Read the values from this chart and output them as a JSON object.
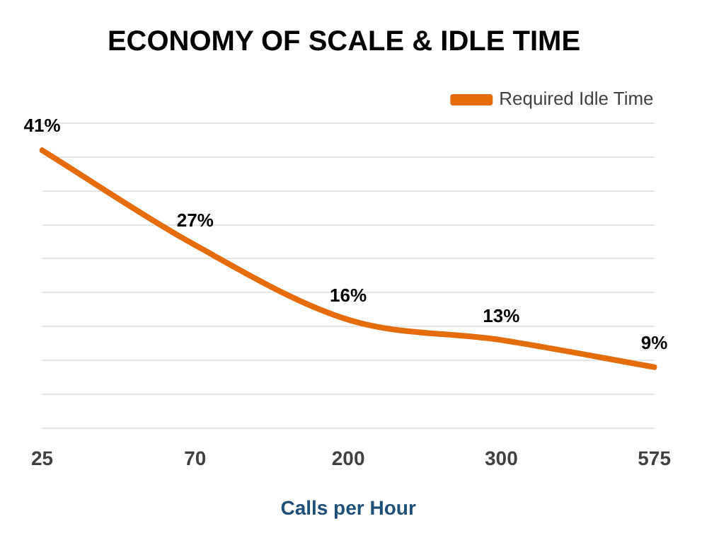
{
  "chart_data": {
    "type": "line",
    "title": "ECONOMY OF SCALE & IDLE TIME",
    "xlabel": "Calls per Hour",
    "categories": [
      "25",
      "70",
      "200",
      "300",
      "575"
    ],
    "series": [
      {
        "name": "Required Idle Time",
        "color": "#e46c0a",
        "values": [
          41,
          27,
          16,
          13,
          9
        ],
        "value_labels": [
          "41%",
          "27%",
          "16%",
          "13%",
          "9%"
        ]
      }
    ],
    "ylim": [
      0,
      45
    ],
    "yticks": [
      {
        "value": 0,
        "label": null
      },
      {
        "value": 5,
        "label": null
      },
      {
        "value": 10,
        "label": null
      },
      {
        "value": 15,
        "label": null
      },
      {
        "value": 20,
        "label": null
      },
      {
        "value": 25,
        "label": null
      },
      {
        "value": 30,
        "label": null
      },
      {
        "value": 35,
        "label": null
      },
      {
        "value": 40,
        "label": null
      },
      {
        "value": 45,
        "label": null
      }
    ],
    "grid": "y",
    "legend": "top right",
    "marker": "none",
    "line_style": "solid",
    "tick_labels": "x"
  }
}
